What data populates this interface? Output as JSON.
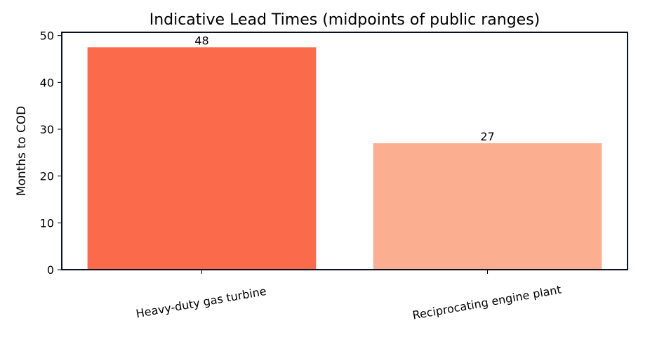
{
  "chart_data": {
    "type": "bar",
    "title": "Indicative Lead Times (midpoints of public ranges)",
    "xlabel": "",
    "ylabel": "Months to COD",
    "categories": [
      "Heavy-duty gas turbine",
      "Reciprocating engine plant"
    ],
    "values": [
      47.5,
      27
    ],
    "data_labels": [
      "48",
      "27"
    ],
    "colors": [
      "#FB6A4A",
      "#FCAE91"
    ],
    "ylim": [
      0,
      50.7
    ],
    "yticks": [
      0,
      10,
      20,
      30,
      40,
      50
    ],
    "grid": false,
    "xtick_rotation_deg": 10
  }
}
